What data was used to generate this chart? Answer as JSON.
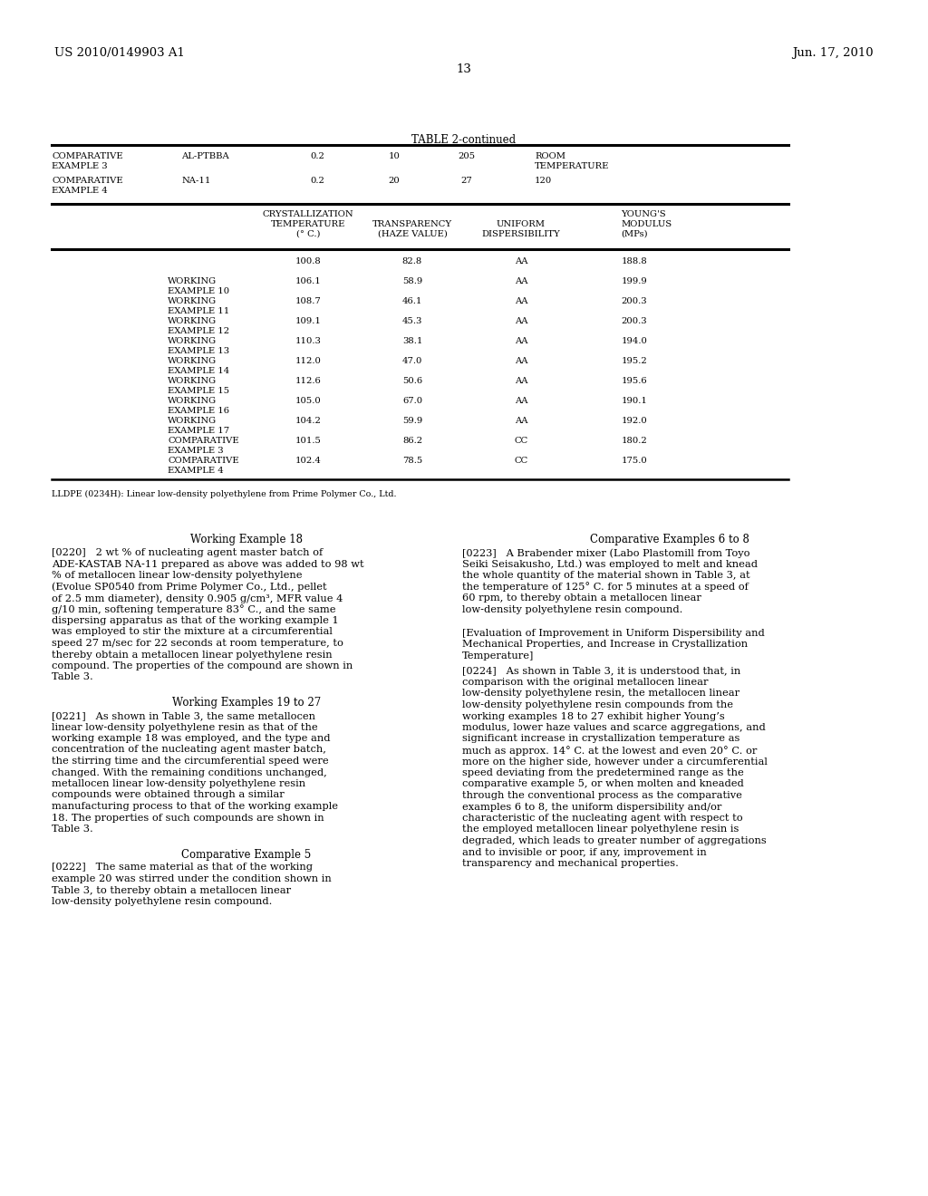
{
  "patent_number": "US 2010/0149903 A1",
  "patent_date": "Jun. 17, 2010",
  "page_number": "13",
  "background_color": "#ffffff",
  "table_title": "TABLE 2-continued",
  "table1_rows": [
    [
      "COMPARATIVE\nEXAMPLE 3",
      "AL-PTBBA",
      "0.2",
      "10",
      "205",
      "ROOM\nTEMPERATURE"
    ],
    [
      "COMPARATIVE\nEXAMPLE 4",
      "NA-11",
      "0.2",
      "20",
      "27",
      "120"
    ]
  ],
  "table2_hdr": [
    "CRYSTALLIZATION\nTEMPERATURE\n(° C.)",
    "TRANSPARENCY\n(HAZE VALUE)",
    "UNIFORM\nDISPERSIBILITY",
    "YOUNG'S\nMODULUS\n(MPs)"
  ],
  "table2_rows": [
    [
      "",
      "100.8",
      "82.8",
      "AA",
      "188.8"
    ],
    [
      "WORKING\nEXAMPLE 10",
      "106.1",
      "58.9",
      "AA",
      "199.9"
    ],
    [
      "WORKING\nEXAMPLE 11",
      "108.7",
      "46.1",
      "AA",
      "200.3"
    ],
    [
      "WORKING\nEXAMPLE 12",
      "109.1",
      "45.3",
      "AA",
      "200.3"
    ],
    [
      "WORKING\nEXAMPLE 13",
      "110.3",
      "38.1",
      "AA",
      "194.0"
    ],
    [
      "WORKING\nEXAMPLE 14",
      "112.0",
      "47.0",
      "AA",
      "195.2"
    ],
    [
      "WORKING\nEXAMPLE 15",
      "112.6",
      "50.6",
      "AA",
      "195.6"
    ],
    [
      "WORKING\nEXAMPLE 16",
      "105.0",
      "67.0",
      "AA",
      "190.1"
    ],
    [
      "WORKING\nEXAMPLE 17",
      "104.2",
      "59.9",
      "AA",
      "192.0"
    ],
    [
      "COMPARATIVE\nEXAMPLE 3",
      "101.5",
      "86.2",
      "CC",
      "180.2"
    ],
    [
      "COMPARATIVE\nEXAMPLE 4",
      "102.4",
      "78.5",
      "CC",
      "175.0"
    ]
  ],
  "footnote": "LLDPE (0234H): Linear low-density polyethylene from Prime Polymer Co., Ltd.",
  "sec1_title": "Working Example 18",
  "sec1_body": "[0220]   2 wt % of nucleating agent master batch of ADE-KASTAB NA-11 prepared as above was added to 98 wt % of metallocen linear low-density polyethylene (Evolue SP0540 from Prime Polymer Co., Ltd., pellet of 2.5 mm diameter), density 0.905 g/cm³, MFR value 4 g/10 min, softening temperature 83° C., and the same dispersing apparatus as that of the working example 1 was employed to stir the mixture at a circumferential speed 27 m/sec for 22 seconds at room temperature, to thereby obtain a metallocen linear polyethylene resin compound. The properties of the compound are shown in Table 3.",
  "sec2_title": "Working Examples 19 to 27",
  "sec2_body": "[0221]   As shown in Table 3, the same metallocen linear low-density polyethylene resin as that of the working example 18 was employed, and the type and concentration of the nucleating agent master batch, the stirring time and the circumferential speed were changed. With the remaining conditions unchanged, metallocen linear low-density polyethylene resin compounds were obtained through a similar manufacturing process to that of the working example 18. The properties of such compounds are shown in Table 3.",
  "sec3_title": "Comparative Example 5",
  "sec3_body": "[0222]   The same material as that of the working example 20 was stirred under the condition shown in Table 3, to thereby obtain a metallocen linear low-density polyethylene resin compound.",
  "sec4_title": "Comparative Examples 6 to 8",
  "sec4_body": "[0223]   A Brabender mixer (Labo Plastomill from Toyo Seiki Seisakusho, Ltd.) was employed to melt and knead the whole quantity of the material shown in Table 3, at the temperature of 125° C. for 5 minutes at a speed of 60 rpm, to thereby obtain a metallocen linear low-density polyethylene resin compound.",
  "sec5_title": "[Evaluation of Improvement in Uniform Dispersibility and Mechanical Properties, and Increase in Crystallization Temperature]",
  "sec5_body": "[0224]   As shown in Table 3, it is understood that, in comparison with the original metallocen linear low-density polyethylene resin, the metallocen linear low-density polyethylene resin compounds from the working examples 18 to 27 exhibit higher Young’s modulus, lower haze values and scarce aggregations, and significant increase in crystallization temperature as much as approx. 14° C. at the lowest and even 20° C. or more on the higher side, however under a circumferential speed deviating from the predetermined range as the comparative example 5, or when molten and kneaded through the conventional process as the comparative examples 6 to 8, the uniform dispersibility and/or characteristic of the nucleating agent with respect to the employed metallocen linear polyethylene resin is degraded, which leads to greater number of aggregations and to invisible or poor, if any, improvement in transparency and mechanical properties."
}
